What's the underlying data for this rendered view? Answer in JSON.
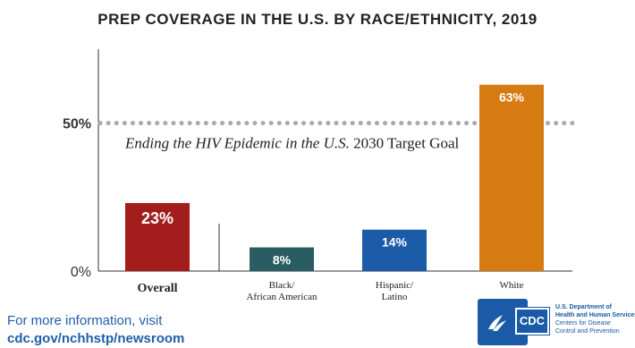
{
  "chart_data": {
    "type": "bar",
    "title": "PREP COVERAGE IN THE U.S. BY RACE/ETHNICITY, 2019",
    "categories": [
      "Overall",
      "Black/ African American",
      "Hispanic/ Latino",
      "White"
    ],
    "category_lines": [
      [
        "Overall"
      ],
      [
        "Black/",
        "African American"
      ],
      [
        "Hispanic/",
        "Latino"
      ],
      [
        "White"
      ]
    ],
    "values": [
      23,
      8,
      14,
      63
    ],
    "value_labels": [
      "23%",
      "8%",
      "14%",
      "63%"
    ],
    "colors": [
      "#a31d1d",
      "#2a5c63",
      "#1c5ba8",
      "#d67a12"
    ],
    "ylim": [
      0,
      75
    ],
    "y_ticks": [
      {
        "value": 0,
        "label": "0%"
      },
      {
        "value": 50,
        "label": "50%"
      }
    ],
    "target_line": {
      "value": 50,
      "color": "#aaaaaa"
    },
    "annotation": {
      "italic_part": "Ending the HIV Epidemic in the U.S.",
      "regular_part": " 2030 Target Goal"
    }
  },
  "footer": {
    "line1": "For more information, visit",
    "line2": "cdc.gov/nchhstp/newsroom"
  },
  "logo": {
    "cdc_text": "CDC",
    "org_lines": [
      "U.S. Department of",
      "Health and Human Services",
      "Centers for Disease",
      "Control and Prevention"
    ]
  }
}
